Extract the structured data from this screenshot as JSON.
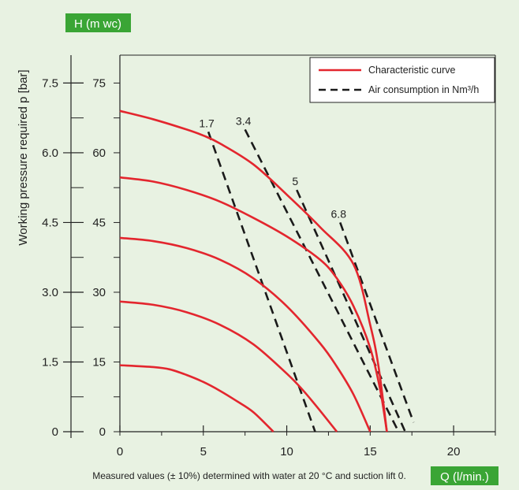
{
  "chart_data": {
    "type": "line",
    "h_axis_badge": "H (m wc)",
    "x_axis_badge": "Q (l/min.)",
    "ylabel": "Working pressure required p [bar]",
    "footnote": "Measured values (± 10%) determined with water at 20 °C and suction lift 0.",
    "xlim": [
      0,
      22.5
    ],
    "ylim_bar": [
      0,
      8.1
    ],
    "x_ticks": [
      0,
      5,
      10,
      15,
      20
    ],
    "x_tick_labels": [
      "0",
      "5",
      "10",
      "15",
      "20"
    ],
    "y_ticks_bar": [
      0,
      1.5,
      3.0,
      4.5,
      6.0,
      7.5
    ],
    "y_tick_labels_bar": [
      "0",
      "1.5",
      "3.0",
      "4.5",
      "6.0",
      "7.5"
    ],
    "y_tick_labels_h": [
      "0",
      "15",
      "30",
      "45",
      "60",
      "75"
    ],
    "grid": false,
    "legend": {
      "position": "top-right",
      "entries": [
        {
          "label": "Characteristic curve",
          "style": "solid",
          "color": "#e3262e"
        },
        {
          "label": "Air consumption in Nm³/h",
          "style": "dashed",
          "color": "#1a1a1a"
        }
      ]
    },
    "characteristic_curves": [
      {
        "x": [
          0,
          2,
          4,
          5,
          6,
          8,
          10,
          12,
          14,
          15,
          15.5,
          16.0
        ],
        "y": [
          6.9,
          6.72,
          6.5,
          6.37,
          6.2,
          5.75,
          5.1,
          4.4,
          3.6,
          2.3,
          1.4,
          0
        ]
      },
      {
        "x": [
          0,
          2,
          4,
          6,
          8,
          10,
          12,
          13,
          14,
          15,
          15.6,
          16.0
        ],
        "y": [
          5.47,
          5.38,
          5.2,
          4.95,
          4.6,
          4.2,
          3.7,
          3.3,
          2.7,
          1.8,
          0.9,
          0
        ]
      },
      {
        "x": [
          0,
          2,
          4,
          6,
          8,
          10,
          12,
          13,
          14,
          15
        ],
        "y": [
          4.17,
          4.1,
          3.95,
          3.7,
          3.3,
          2.7,
          1.9,
          1.4,
          0.8,
          0
        ]
      },
      {
        "x": [
          0,
          2,
          4,
          6,
          8,
          10,
          11,
          12,
          13
        ],
        "y": [
          2.8,
          2.73,
          2.57,
          2.3,
          1.88,
          1.25,
          0.88,
          0.45,
          0
        ]
      },
      {
        "x": [
          0,
          2,
          3,
          4,
          5,
          6,
          7,
          8,
          9.2
        ],
        "y": [
          1.43,
          1.39,
          1.34,
          1.22,
          1.07,
          0.88,
          0.66,
          0.42,
          0
        ]
      }
    ],
    "air_consumption_lines": [
      {
        "label": "1.7",
        "x": [
          5.3,
          11.7
        ],
        "y": [
          6.45,
          0
        ]
      },
      {
        "label": "3.4",
        "x": [
          7.5,
          16.7
        ],
        "y": [
          6.5,
          0
        ]
      },
      {
        "label": "5",
        "x": [
          10.6,
          17.1
        ],
        "y": [
          5.2,
          0
        ]
      },
      {
        "label": "6.8",
        "x": [
          13.2,
          17.6
        ],
        "y": [
          4.5,
          0.2
        ]
      }
    ]
  }
}
